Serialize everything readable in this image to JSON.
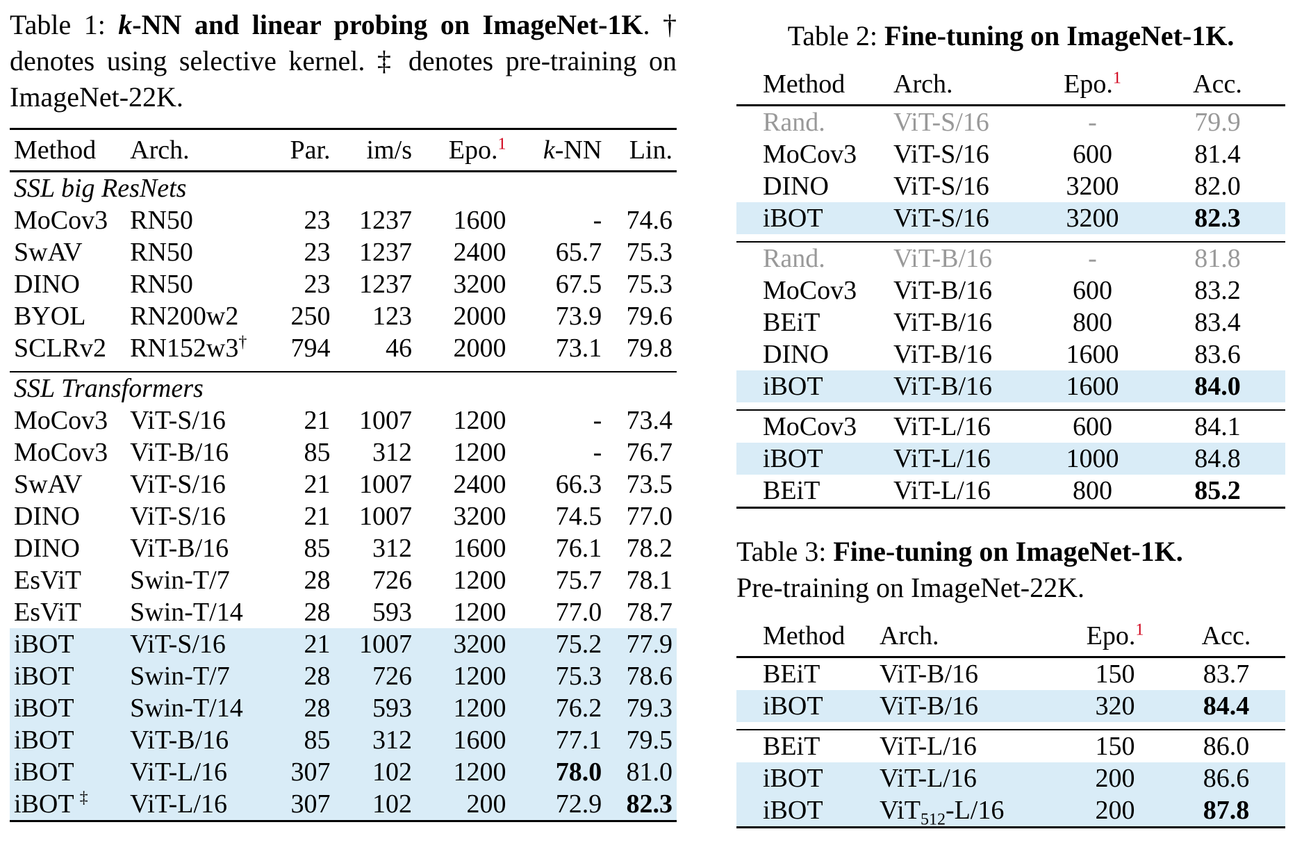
{
  "table1": {
    "caption_label": "Table 1:",
    "caption_k": "k",
    "caption_bold": "-NN and linear probing on ImageNet-1K",
    "caption_rest": ". † denotes using selective kernel. ‡ denotes pre-training on ImageNet-22K.",
    "headers": {
      "method": "Method",
      "arch": "Arch.",
      "par": "Par.",
      "ims": "im/s",
      "epo": "Epo.",
      "epo_note": "1",
      "knn_k": "k",
      "knn": "-NN",
      "lin": "Lin."
    },
    "section1": "SSL big ResNets",
    "section2": "SSL Transformers",
    "rows": [
      [
        "MoCov3",
        "RN50",
        "23",
        "1237",
        "1600",
        "-",
        "74.6"
      ],
      [
        "SwAV",
        "RN50",
        "23",
        "1237",
        "2400",
        "65.7",
        "75.3"
      ],
      [
        "DINO",
        "RN50",
        "23",
        "1237",
        "3200",
        "67.5",
        "75.3"
      ],
      [
        "BYOL",
        "RN200w2",
        "250",
        "123",
        "2000",
        "73.9",
        "79.6"
      ],
      [
        "SCLRv2",
        "RN152w3",
        "794",
        "46",
        "2000",
        "73.1",
        "79.8"
      ],
      [
        "MoCov3",
        "ViT-S/16",
        "21",
        "1007",
        "1200",
        "-",
        "73.4"
      ],
      [
        "MoCov3",
        "ViT-B/16",
        "85",
        "312",
        "1200",
        "-",
        "76.7"
      ],
      [
        "SwAV",
        "ViT-S/16",
        "21",
        "1007",
        "2400",
        "66.3",
        "73.5"
      ],
      [
        "DINO",
        "ViT-S/16",
        "21",
        "1007",
        "3200",
        "74.5",
        "77.0"
      ],
      [
        "DINO",
        "ViT-B/16",
        "85",
        "312",
        "1600",
        "76.1",
        "78.2"
      ],
      [
        "EsViT",
        "Swin-T/7",
        "28",
        "726",
        "1200",
        "75.7",
        "78.1"
      ],
      [
        "EsViT",
        "Swin-T/14",
        "28",
        "593",
        "1200",
        "77.0",
        "78.7"
      ],
      [
        "iBOT",
        "ViT-S/16",
        "21",
        "1007",
        "3200",
        "75.2",
        "77.9"
      ],
      [
        "iBOT",
        "Swin-T/7",
        "28",
        "726",
        "1200",
        "75.3",
        "78.6"
      ],
      [
        "iBOT",
        "Swin-T/14",
        "28",
        "593",
        "1200",
        "76.2",
        "79.3"
      ],
      [
        "iBOT",
        "ViT-B/16",
        "85",
        "312",
        "1600",
        "77.1",
        "79.5"
      ],
      [
        "iBOT",
        "ViT-L/16",
        "307",
        "102",
        "1200",
        "78.0",
        "81.0"
      ],
      [
        "iBOT",
        "ViT-L/16",
        "307",
        "102",
        "200",
        "72.9",
        "82.3"
      ]
    ],
    "dagger": "†",
    "ddagger": "‡"
  },
  "table2": {
    "caption_label": "Table 2:",
    "caption_bold": "Fine-tuning on ImageNet-1K.",
    "headers": {
      "method": "Method",
      "arch": "Arch.",
      "epo": "Epo.",
      "epo_note": "1",
      "acc": "Acc."
    },
    "rows": [
      [
        "Rand.",
        "ViT-S/16",
        "-",
        "79.9"
      ],
      [
        "MoCov3",
        "ViT-S/16",
        "600",
        "81.4"
      ],
      [
        "DINO",
        "ViT-S/16",
        "3200",
        "82.0"
      ],
      [
        "iBOT",
        "ViT-S/16",
        "3200",
        "82.3"
      ],
      [
        "Rand.",
        "ViT-B/16",
        "-",
        "81.8"
      ],
      [
        "MoCov3",
        "ViT-B/16",
        "600",
        "83.2"
      ],
      [
        "BEiT",
        "ViT-B/16",
        "800",
        "83.4"
      ],
      [
        "DINO",
        "ViT-B/16",
        "1600",
        "83.6"
      ],
      [
        "iBOT",
        "ViT-B/16",
        "1600",
        "84.0"
      ],
      [
        "MoCov3",
        "ViT-L/16",
        "600",
        "84.1"
      ],
      [
        "iBOT",
        "ViT-L/16",
        "1000",
        "84.8"
      ],
      [
        "BEiT",
        "ViT-L/16",
        "800",
        "85.2"
      ]
    ]
  },
  "table3": {
    "caption_label": "Table 3:",
    "caption_bold": "Fine-tuning on ImageNet-1K.",
    "caption_rest": "Pre-training on ImageNet-22K.",
    "headers": {
      "method": "Method",
      "arch": "Arch.",
      "epo": "Epo.",
      "epo_note": "1",
      "acc": "Acc."
    },
    "rows": [
      [
        "BEiT",
        "ViT-B/16",
        "150",
        "83.7"
      ],
      [
        "iBOT",
        "ViT-B/16",
        "320",
        "84.4"
      ],
      [
        "BEiT",
        "ViT-L/16",
        "150",
        "86.0"
      ],
      [
        "iBOT",
        "ViT-L/16",
        "200",
        "86.6"
      ],
      [
        "iBOT",
        "ViT",
        "200",
        "87.8"
      ]
    ],
    "last_arch_sub": "512",
    "last_arch_suffix": "-L/16"
  },
  "colors": {
    "highlight": "#d9ecf7",
    "footnote_mark": "#d0021b",
    "muted": "#999999"
  }
}
